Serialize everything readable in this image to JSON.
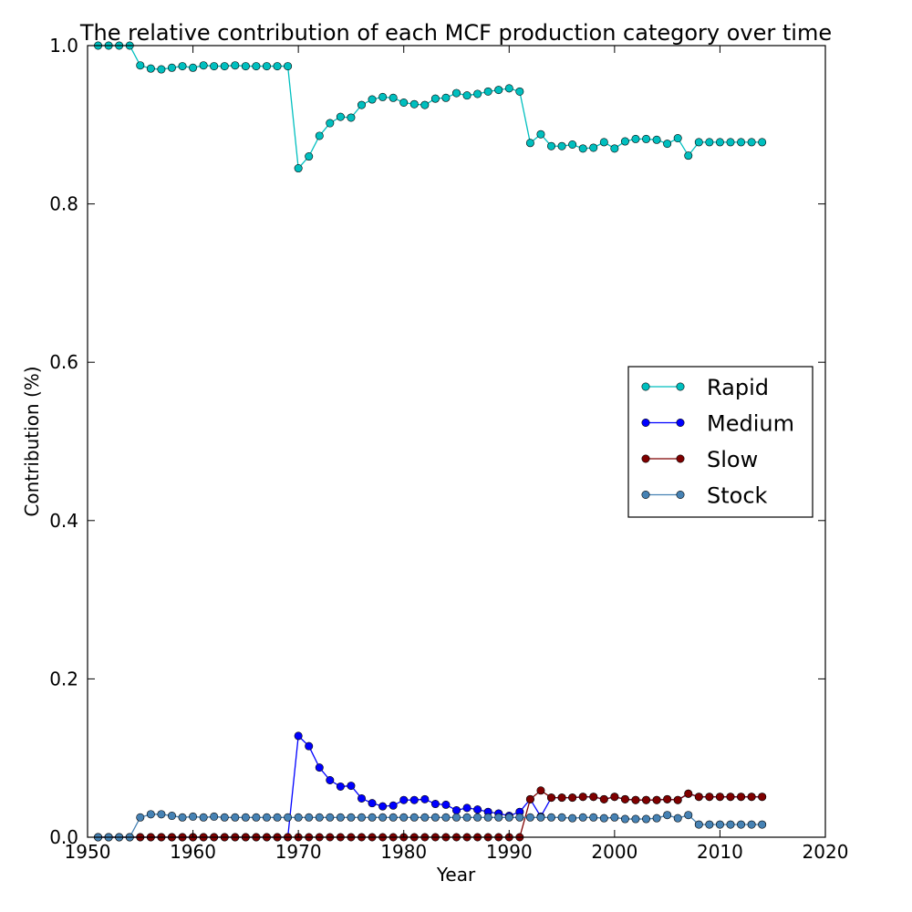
{
  "chart_data": {
    "type": "line",
    "title": "The relative contribution of each MCF production category over time",
    "xlabel": "Year",
    "ylabel": "Contribution (%)",
    "xlim": [
      1950,
      2020
    ],
    "ylim": [
      0.0,
      1.0
    ],
    "xticks": [
      "1950",
      "1960",
      "1970",
      "1980",
      "1990",
      "2000",
      "2010",
      "2020"
    ],
    "yticks": [
      "0.0",
      "0.2",
      "0.4",
      "0.6",
      "0.8",
      "1.0"
    ],
    "grid": false,
    "legend_position": "center-right",
    "x": [
      1951,
      1952,
      1953,
      1954,
      1955,
      1956,
      1957,
      1958,
      1959,
      1960,
      1961,
      1962,
      1963,
      1964,
      1965,
      1966,
      1967,
      1968,
      1969,
      1970,
      1971,
      1972,
      1973,
      1974,
      1975,
      1976,
      1977,
      1978,
      1979,
      1980,
      1981,
      1982,
      1983,
      1984,
      1985,
      1986,
      1987,
      1988,
      1989,
      1990,
      1991,
      1992,
      1993,
      1994,
      1995,
      1996,
      1997,
      1998,
      1999,
      2000,
      2001,
      2002,
      2003,
      2004,
      2005,
      2006,
      2007,
      2008,
      2009,
      2010,
      2011,
      2012,
      2013,
      2014
    ],
    "series": [
      {
        "name": "Rapid",
        "color": "#00bfbf",
        "values": [
          1.0,
          1.0,
          1.0,
          1.0,
          0.975,
          0.971,
          0.97,
          0.972,
          0.974,
          0.972,
          0.975,
          0.974,
          0.974,
          0.975,
          0.974,
          0.974,
          0.974,
          0.974,
          0.974,
          0.845,
          0.86,
          0.886,
          0.902,
          0.91,
          0.909,
          0.925,
          0.932,
          0.935,
          0.934,
          0.928,
          0.926,
          0.925,
          0.933,
          0.934,
          0.94,
          0.937,
          0.939,
          0.942,
          0.944,
          0.946,
          0.942,
          0.877,
          0.888,
          0.873,
          0.873,
          0.875,
          0.87,
          0.871,
          0.878,
          0.87,
          0.879,
          0.882,
          0.882,
          0.881,
          0.876,
          0.883,
          0.861,
          0.878,
          0.878,
          0.878,
          0.878,
          0.878,
          0.878,
          0.878
        ]
      },
      {
        "name": "Medium",
        "color": "#0000ff",
        "values": [
          0.0,
          0.0,
          0.0,
          0.0,
          0.0,
          0.0,
          0.0,
          0.0,
          0.0,
          0.0,
          0.0,
          0.0,
          0.0,
          0.0,
          0.0,
          0.0,
          0.0,
          0.0,
          0.0,
          0.128,
          0.115,
          0.088,
          0.072,
          0.064,
          0.065,
          0.049,
          0.043,
          0.039,
          0.04,
          0.047,
          0.047,
          0.048,
          0.042,
          0.041,
          0.034,
          0.037,
          0.035,
          0.032,
          0.03,
          0.027,
          0.032,
          0.048,
          0.026,
          0.05,
          0.05,
          0.05,
          0.051,
          0.051,
          0.048,
          0.051,
          0.048,
          0.047,
          0.047,
          0.047,
          0.048,
          0.047,
          0.055,
          0.051,
          0.051,
          0.051,
          0.051,
          0.051,
          0.051,
          0.051
        ]
      },
      {
        "name": "Slow",
        "color": "#7f0000",
        "values": [
          0.0,
          0.0,
          0.0,
          0.0,
          0.0,
          0.0,
          0.0,
          0.0,
          0.0,
          0.0,
          0.0,
          0.0,
          0.0,
          0.0,
          0.0,
          0.0,
          0.0,
          0.0,
          0.0,
          0.0,
          0.0,
          0.0,
          0.0,
          0.0,
          0.0,
          0.0,
          0.0,
          0.0,
          0.0,
          0.0,
          0.0,
          0.0,
          0.0,
          0.0,
          0.0,
          0.0,
          0.0,
          0.0,
          0.0,
          0.0,
          0.0,
          0.048,
          0.059,
          0.05,
          0.05,
          0.05,
          0.051,
          0.051,
          0.048,
          0.051,
          0.048,
          0.047,
          0.047,
          0.047,
          0.048,
          0.047,
          0.055,
          0.051,
          0.051,
          0.051,
          0.051,
          0.051,
          0.051,
          0.051
        ]
      },
      {
        "name": "Stock",
        "color": "#4682b4",
        "values": [
          0.0,
          0.0,
          0.0,
          0.0,
          0.025,
          0.029,
          0.029,
          0.027,
          0.025,
          0.026,
          0.025,
          0.026,
          0.025,
          0.025,
          0.025,
          0.025,
          0.025,
          0.025,
          0.025,
          0.025,
          0.025,
          0.025,
          0.025,
          0.025,
          0.025,
          0.025,
          0.025,
          0.025,
          0.025,
          0.025,
          0.025,
          0.025,
          0.025,
          0.025,
          0.025,
          0.025,
          0.025,
          0.025,
          0.025,
          0.025,
          0.025,
          0.025,
          0.025,
          0.025,
          0.025,
          0.024,
          0.025,
          0.025,
          0.024,
          0.025,
          0.023,
          0.023,
          0.023,
          0.024,
          0.028,
          0.024,
          0.028,
          0.016,
          0.016,
          0.016,
          0.016,
          0.016,
          0.016,
          0.016
        ]
      }
    ]
  }
}
